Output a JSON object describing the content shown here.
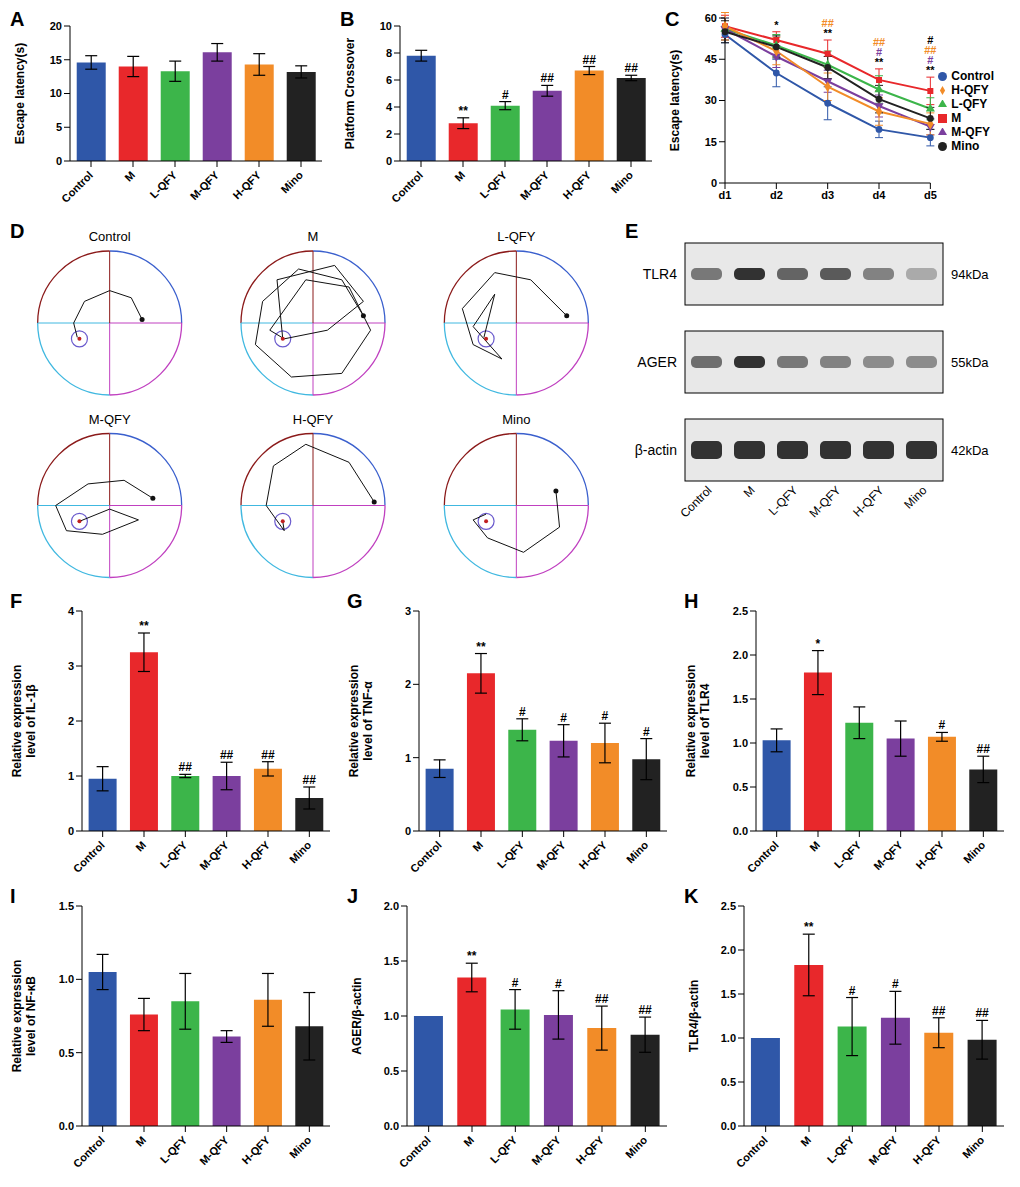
{
  "chart_data": [
    {
      "panel_label": "A",
      "type": "bar",
      "y_label": "Escape latency(s)",
      "categories": [
        "Control",
        "M",
        "L-QFY",
        "M-QFY",
        "H-QFY",
        "Mino"
      ],
      "values": [
        14.6,
        14.0,
        13.3,
        16.1,
        14.3,
        13.2
      ],
      "errors": [
        1.0,
        1.5,
        1.5,
        1.3,
        1.6,
        0.9
      ],
      "colors": [
        "#2f57a8",
        "#e8282b",
        "#3cb54a",
        "#7b3f9e",
        "#f28c28",
        "#222222"
      ],
      "ylim": [
        0,
        20
      ],
      "yticks": [
        0,
        5,
        10,
        15,
        20
      ]
    },
    {
      "panel_label": "B",
      "type": "bar",
      "y_label": "Platform Crossover",
      "categories": [
        "Control",
        "M",
        "L-QFY",
        "M-QFY",
        "H-QFY",
        "Mino"
      ],
      "values": [
        7.8,
        2.8,
        4.1,
        5.2,
        6.7,
        6.15
      ],
      "errors": [
        0.4,
        0.4,
        0.3,
        0.4,
        0.3,
        0.2
      ],
      "annotations": [
        null,
        "**",
        "#",
        "##",
        "##",
        "##"
      ],
      "colors": [
        "#2f57a8",
        "#e8282b",
        "#3cb54a",
        "#7b3f9e",
        "#f28c28",
        "#222222"
      ],
      "ylim": [
        0,
        10
      ],
      "yticks": [
        0,
        2,
        4,
        6,
        8,
        10
      ]
    },
    {
      "panel_label": "C",
      "type": "line",
      "y_label": "Escape latency(s)",
      "categories": [
        "d1",
        "d2",
        "d3",
        "d4",
        "d5"
      ],
      "ylim": [
        0,
        60
      ],
      "yticks": [
        0,
        15,
        30,
        45,
        60
      ],
      "legend": "right",
      "series": [
        {
          "name": "Control",
          "color": "#2f57a8",
          "marker": "circle",
          "values": [
            54,
            40,
            29,
            19.5,
            16.5
          ],
          "errors": [
            3,
            5,
            6,
            3,
            3
          ]
        },
        {
          "name": "M",
          "color": "#e8282b",
          "marker": "square",
          "values": [
            57,
            52,
            47,
            37.5,
            33.5
          ],
          "errors": [
            4,
            3,
            5,
            4,
            5
          ]
        },
        {
          "name": "L-QFY",
          "color": "#3cb54a",
          "marker": "triangle",
          "values": [
            56,
            50,
            43,
            34,
            27
          ],
          "errors": [
            4,
            4,
            5,
            5,
            4
          ]
        },
        {
          "name": "M-QFY",
          "color": "#7b3f9e",
          "marker": "triangle-down",
          "values": [
            56,
            46,
            37,
            28,
            20.5
          ],
          "errors": [
            4,
            4,
            4,
            4,
            3
          ]
        },
        {
          "name": "H-QFY",
          "color": "#f28c28",
          "marker": "diamond",
          "values": [
            57,
            48,
            35,
            26,
            21.5
          ],
          "errors": [
            5,
            5,
            5,
            5,
            4
          ]
        },
        {
          "name": "Mino",
          "color": "#222222",
          "marker": "circle",
          "values": [
            55,
            49.5,
            42,
            30.5,
            23.5
          ],
          "errors": [
            4,
            4,
            4,
            5,
            4
          ]
        }
      ],
      "annotations": [
        {
          "category": "d2",
          "marks": [
            {
              "text": "*",
              "color": "#000000"
            }
          ]
        },
        {
          "category": "d3",
          "marks": [
            {
              "text": "##",
              "color": "#f28c28"
            },
            {
              "text": "**",
              "color": "#000000"
            }
          ]
        },
        {
          "category": "d4",
          "marks": [
            {
              "text": "##",
              "color": "#f28c28"
            },
            {
              "text": "#",
              "color": "#7b3f9e"
            },
            {
              "text": "**",
              "color": "#000000"
            }
          ]
        },
        {
          "category": "d5",
          "marks": [
            {
              "text": "#",
              "color": "#000000"
            },
            {
              "text": "##",
              "color": "#f28c28"
            },
            {
              "text": "#",
              "color": "#7b3f9e"
            },
            {
              "text": "**",
              "color": "#000000"
            }
          ]
        }
      ]
    },
    {
      "panel_label": "F",
      "type": "bar",
      "y_label": "Relative expression level of IL-1β",
      "categories": [
        "Control",
        "M",
        "L-QFY",
        "M-QFY",
        "H-QFY",
        "Mino"
      ],
      "values": [
        0.95,
        3.25,
        1.0,
        1.0,
        1.13,
        0.6
      ],
      "errors": [
        0.22,
        0.35,
        0.03,
        0.25,
        0.13,
        0.2
      ],
      "annotations": [
        null,
        "**",
        "##",
        "##",
        "##",
        "##"
      ],
      "colors": [
        "#2f57a8",
        "#e8282b",
        "#3cb54a",
        "#7b3f9e",
        "#f28c28",
        "#222222"
      ],
      "ylim": [
        0,
        4
      ],
      "yticks": [
        0,
        1,
        2,
        3,
        4
      ]
    },
    {
      "panel_label": "G",
      "type": "bar",
      "y_label": "Relative expression level of TNF-α",
      "categories": [
        "Control",
        "M",
        "L-QFY",
        "M-QFY",
        "H-QFY",
        "Mino"
      ],
      "values": [
        0.85,
        2.15,
        1.38,
        1.23,
        1.2,
        0.98
      ],
      "errors": [
        0.12,
        0.27,
        0.15,
        0.22,
        0.27,
        0.28
      ],
      "annotations": [
        null,
        "**",
        "#",
        "#",
        "#",
        "#"
      ],
      "colors": [
        "#2f57a8",
        "#e8282b",
        "#3cb54a",
        "#7b3f9e",
        "#f28c28",
        "#222222"
      ],
      "ylim": [
        0,
        3
      ],
      "yticks": [
        0,
        1,
        2,
        3
      ]
    },
    {
      "panel_label": "H",
      "type": "bar",
      "y_label": "Relative expression level of TLR4",
      "categories": [
        "Control",
        "M",
        "L-QFY",
        "M-QFY",
        "H-QFY",
        "Mino"
      ],
      "values": [
        1.03,
        1.8,
        1.23,
        1.05,
        1.07,
        0.7
      ],
      "errors": [
        0.13,
        0.25,
        0.18,
        0.2,
        0.05,
        0.15
      ],
      "annotations": [
        null,
        "*",
        null,
        null,
        "#",
        "##"
      ],
      "colors": [
        "#2f57a8",
        "#e8282b",
        "#3cb54a",
        "#7b3f9e",
        "#f28c28",
        "#222222"
      ],
      "ylim": [
        0,
        2.5
      ],
      "yticks": [
        {
          "value": 0,
          "label": "0.0"
        },
        {
          "value": 0.5,
          "label": "0.5"
        },
        {
          "value": 1,
          "label": "1.0"
        },
        {
          "value": 1.5,
          "label": "1.5"
        },
        {
          "value": 2,
          "label": "2.0"
        },
        {
          "value": 2.5,
          "label": "2.5"
        }
      ]
    },
    {
      "panel_label": "I",
      "type": "bar",
      "y_label": "Relative expression level of NF-κB",
      "categories": [
        "Control",
        "M",
        "L-QFY",
        "M-QFY",
        "H-QFY",
        "Mino"
      ],
      "values": [
        1.05,
        0.76,
        0.85,
        0.61,
        0.86,
        0.68
      ],
      "errors": [
        0.12,
        0.11,
        0.19,
        0.04,
        0.18,
        0.23
      ],
      "colors": [
        "#2f57a8",
        "#e8282b",
        "#3cb54a",
        "#7b3f9e",
        "#f28c28",
        "#222222"
      ],
      "ylim": [
        0,
        1.5
      ],
      "yticks": [
        {
          "value": 0,
          "label": "0.0"
        },
        {
          "value": 0.5,
          "label": "0.5"
        },
        {
          "value": 1,
          "label": "1.0"
        },
        {
          "value": 1.5,
          "label": "1.5"
        }
      ]
    },
    {
      "panel_label": "J",
      "type": "bar",
      "y_label": "AGER/β-actin",
      "categories": [
        "Control",
        "M",
        "L-QFY",
        "M-QFY",
        "H-QFY",
        "Mino"
      ],
      "values": [
        1.0,
        1.35,
        1.06,
        1.01,
        0.89,
        0.83
      ],
      "errors": [
        0,
        0.13,
        0.18,
        0.22,
        0.2,
        0.16
      ],
      "annotations": [
        null,
        "**",
        "#",
        "#",
        "##",
        "##"
      ],
      "colors": [
        "#2f57a8",
        "#e8282b",
        "#3cb54a",
        "#7b3f9e",
        "#f28c28",
        "#222222"
      ],
      "ylim": [
        0,
        2
      ],
      "yticks": [
        {
          "value": 0,
          "label": "0.0"
        },
        {
          "value": 0.5,
          "label": "0.5"
        },
        {
          "value": 1,
          "label": "1.0"
        },
        {
          "value": 1.5,
          "label": "1.5"
        },
        {
          "value": 2,
          "label": "2.0"
        }
      ]
    },
    {
      "panel_label": "K",
      "type": "bar",
      "y_label": "TLR4/β-actin",
      "categories": [
        "Control",
        "M",
        "L-QFY",
        "M-QFY",
        "H-QFY",
        "Mino"
      ],
      "values": [
        1.0,
        1.83,
        1.13,
        1.23,
        1.06,
        0.98
      ],
      "errors": [
        0,
        0.35,
        0.33,
        0.3,
        0.17,
        0.22
      ],
      "annotations": [
        null,
        "**",
        "#",
        "#",
        "##",
        "##"
      ],
      "colors": [
        "#2f57a8",
        "#e8282b",
        "#3cb54a",
        "#7b3f9e",
        "#f28c28",
        "#222222"
      ],
      "ylim": [
        0,
        2.5
      ],
      "yticks": [
        {
          "value": 0,
          "label": "0.0"
        },
        {
          "value": 0.5,
          "label": "0.5"
        },
        {
          "value": 1,
          "label": "1.0"
        },
        {
          "value": 1.5,
          "label": "1.5"
        },
        {
          "value": 2,
          "label": "2.0"
        },
        {
          "value": 2.5,
          "label": "2.5"
        }
      ]
    }
  ],
  "swim_paths": {
    "panel_label": "D",
    "groups": [
      "Control",
      "M",
      "L-QFY",
      "M-QFY",
      "H-QFY",
      "Mino"
    ]
  },
  "western_blot": {
    "panel_label": "E",
    "proteins": [
      {
        "name": "TLR4",
        "size": "94kDa"
      },
      {
        "name": "AGER",
        "size": "55kDa"
      },
      {
        "name": "β-actin",
        "size": "42kDa"
      }
    ],
    "groups": [
      "Control",
      "M",
      "L-QFY",
      "M-QFY",
      "H-QFY",
      "Mino"
    ]
  }
}
